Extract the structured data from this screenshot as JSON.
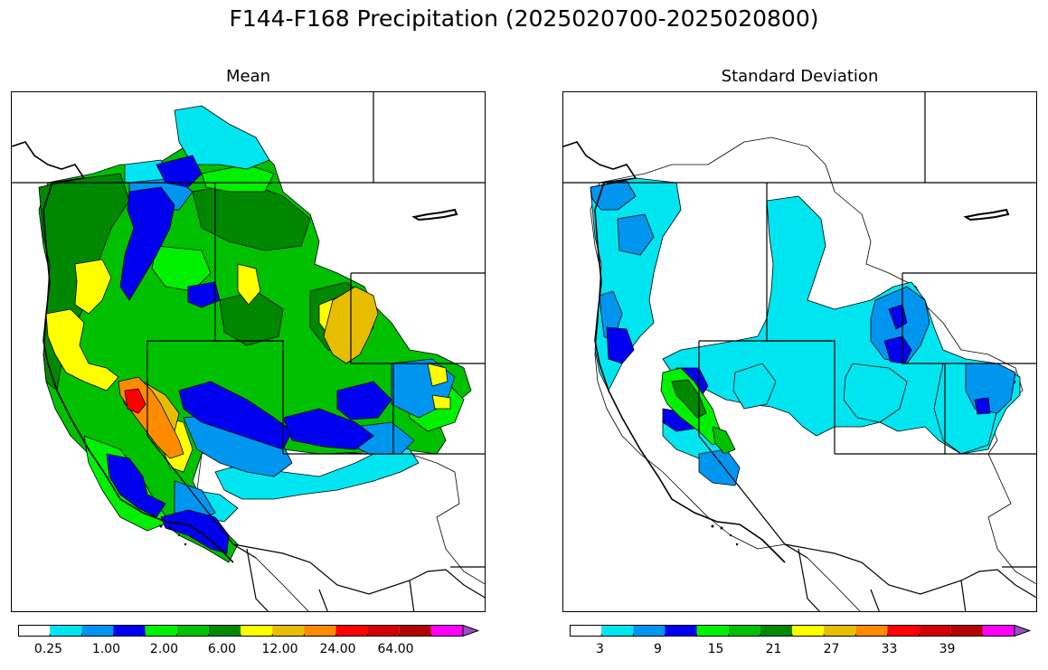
{
  "title": "F144-F168 Precipitation (2025020700-2025020800)",
  "panels": [
    {
      "id": "mean",
      "title": "Mean",
      "colorbar": {
        "colors": [
          "#ffffff",
          "#00e5f0",
          "#0096f0",
          "#0000f0",
          "#00f000",
          "#00c000",
          "#008800",
          "#ffff00",
          "#e6bd00",
          "#ff8c00",
          "#ff0000",
          "#d20000",
          "#b40000",
          "#ff00ff",
          "#9a4fc8"
        ],
        "extend": "max",
        "tick_labels": [
          "0.25",
          "1.00",
          "2.00",
          "6.00",
          "12.00",
          "24.00",
          "64.00"
        ],
        "tick_label_positions": [
          1,
          3,
          5,
          7,
          9,
          11,
          13
        ]
      }
    },
    {
      "id": "stddev",
      "title": "Standard Deviation",
      "colorbar": {
        "colors": [
          "#ffffff",
          "#00e5f0",
          "#0096f0",
          "#0000f0",
          "#00f000",
          "#00c000",
          "#008800",
          "#ffff00",
          "#e6bd00",
          "#ff8c00",
          "#ff0000",
          "#d20000",
          "#b40000",
          "#ff00ff",
          "#9a4fc8"
        ],
        "extend": "max",
        "tick_labels": [
          "3",
          "9",
          "15",
          "21",
          "27",
          "33",
          "39"
        ],
        "tick_label_positions": [
          1,
          3,
          5,
          7,
          9,
          11,
          13
        ]
      }
    }
  ]
}
